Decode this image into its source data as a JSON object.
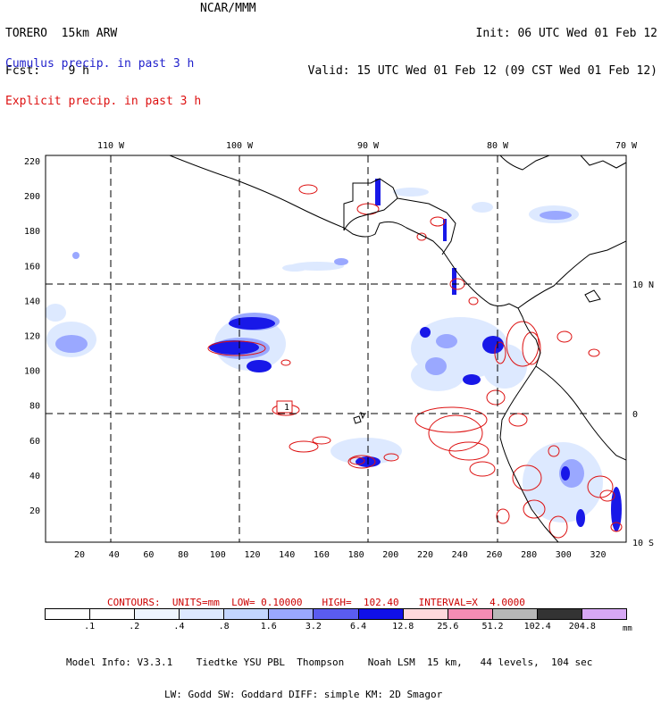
{
  "header": {
    "title": "TORERO  15km ARW",
    "fcst": "Fcst:    9 h",
    "center": "NCAR/MMM",
    "init": "Init: 06 UTC Wed 01 Feb 12",
    "valid": "Valid: 15 UTC Wed 01 Feb 12 (09 CST Wed 01 Feb 12)"
  },
  "legend": {
    "cumulus": "Cumulus precip. in past 3 h",
    "explicit": "Explicit precip. in past 3 h",
    "cumulus_color": "#2222cc",
    "explicit_color": "#dd1111"
  },
  "map": {
    "lon_labels": [
      "110 W",
      "100 W",
      "90 W",
      "80 W",
      "70 W"
    ],
    "lat_labels": [
      "10 N",
      "0",
      "10 S"
    ],
    "x_ticks": [
      "20",
      "40",
      "60",
      "80",
      "100",
      "120",
      "140",
      "160",
      "180",
      "200",
      "220",
      "240",
      "260",
      "280",
      "300",
      "320"
    ],
    "y_ticks": [
      "220",
      "200",
      "180",
      "160",
      "140",
      "120",
      "100",
      "80",
      "60",
      "40",
      "20"
    ],
    "contour_label": "1"
  },
  "contours": {
    "units": "CONTOURS:  UNITS=mm  LOW= 0.10000",
    "high": "HIGH=  102.40",
    "interval": "INTERVAL=X  4.0000"
  },
  "colorbar": {
    "labels": [
      ".1",
      ".2",
      ".4",
      ".8",
      "1.6",
      "3.2",
      "6.4",
      "12.8",
      "25.6",
      "51.2",
      "102.4",
      "204.8"
    ],
    "colors": [
      "#ffffff",
      "#ffffff",
      "#eef5ff",
      "#dde9ff",
      "#c3d6ff",
      "#9aa8ff",
      "#5a5cf0",
      "#1010e8",
      "#ffd8dc",
      "#f48cb4",
      "#b8b8b8",
      "#333333",
      "#d7a8f5"
    ],
    "unit": "mm"
  },
  "model_info": {
    "line1": "Model Info: V3.3.1    Tiedtke YSU PBL  Thompson    Noah LSM  15 km,   44 levels,  104 sec",
    "line2": "LW: Godd SW: Goddard DIFF: simple KM: 2D Smagor"
  }
}
